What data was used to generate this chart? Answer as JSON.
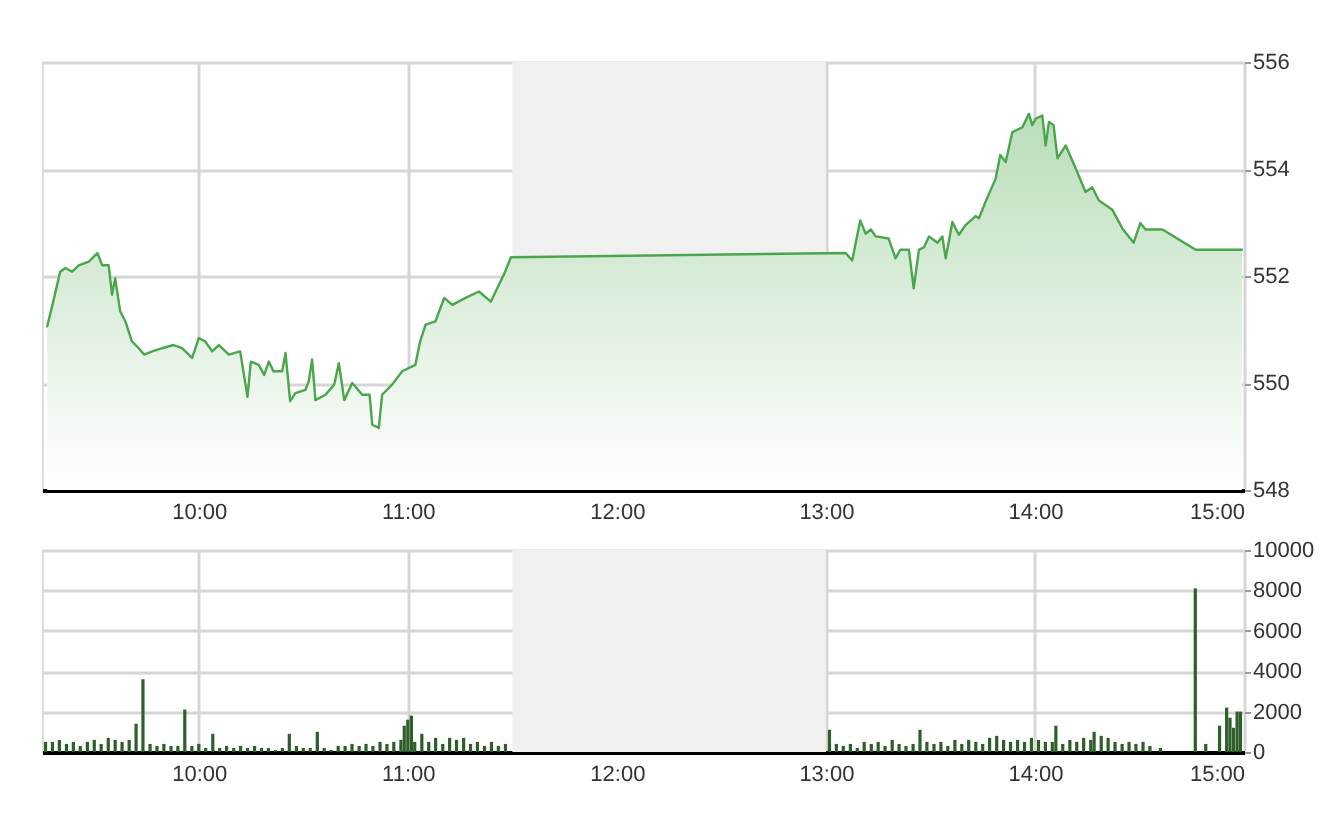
{
  "chart_data": [
    {
      "type": "area",
      "color": "#4aa64a",
      "xlim": [
        9.25,
        15
      ],
      "ylim": [
        548,
        556
      ],
      "xticks": [
        {
          "value": 10,
          "label": "10:00"
        },
        {
          "value": 11,
          "label": "11:00"
        },
        {
          "value": 12,
          "label": "12:00"
        },
        {
          "value": 13,
          "label": "13:00"
        },
        {
          "value": 14,
          "label": "14:00"
        },
        {
          "value": 15,
          "label": "15:00"
        }
      ],
      "yticks": [
        548,
        550,
        552,
        554,
        556
      ],
      "grid": true,
      "bands": [
        {
          "axis": "x",
          "from": 11.5,
          "to": 13,
          "color": "#f0f0f0"
        }
      ],
      "x": [
        9.275,
        9.3,
        9.337,
        9.362,
        9.394,
        9.426,
        9.474,
        9.515,
        9.538,
        9.569,
        9.585,
        9.6,
        9.624,
        9.649,
        9.68,
        9.713,
        9.739,
        9.777,
        9.825,
        9.879,
        9.92,
        9.968,
        10.0,
        10.03,
        10.064,
        10.096,
        10.144,
        10.198,
        10.233,
        10.249,
        10.287,
        10.313,
        10.335,
        10.357,
        10.399,
        10.415,
        10.437,
        10.462,
        10.51,
        10.526,
        10.542,
        10.558,
        10.606,
        10.648,
        10.67,
        10.696,
        10.734,
        10.782,
        10.817,
        10.83,
        10.861,
        10.877,
        10.925,
        10.973,
        11.036,
        11.059,
        11.085,
        11.132,
        11.174,
        11.213,
        11.276,
        11.34,
        11.397,
        11.435,
        11.461,
        11.493,
        13.094,
        13.126,
        13.164,
        13.19,
        13.215,
        13.238,
        13.3,
        13.333,
        13.356,
        13.397,
        13.42,
        13.445,
        13.47,
        13.493,
        13.534,
        13.557,
        13.573,
        13.605,
        13.636,
        13.668,
        13.716,
        13.732,
        13.764,
        13.812,
        13.834,
        13.86,
        13.892,
        13.94,
        13.971,
        13.987,
        14.003,
        14.035,
        14.051,
        14.067,
        14.089,
        14.108,
        14.147,
        14.195,
        14.242,
        14.274,
        14.306,
        14.37,
        14.418,
        14.472,
        14.504,
        14.529,
        14.61,
        14.769,
        14.99
      ],
      "values": [
        551.06,
        551.46,
        552.08,
        552.15,
        552.08,
        552.2,
        552.27,
        552.43,
        552.2,
        552.2,
        551.65,
        551.96,
        551.34,
        551.15,
        550.78,
        550.65,
        550.53,
        550.59,
        550.65,
        550.71,
        550.65,
        550.47,
        550.84,
        550.78,
        550.59,
        550.71,
        550.53,
        550.59,
        549.74,
        550.4,
        550.34,
        550.15,
        550.4,
        550.22,
        550.22,
        550.56,
        549.66,
        549.81,
        549.87,
        550.03,
        550.44,
        549.68,
        549.78,
        549.97,
        550.37,
        549.68,
        550.0,
        549.78,
        549.78,
        549.22,
        549.16,
        549.78,
        549.97,
        550.22,
        550.34,
        550.78,
        551.09,
        551.15,
        551.59,
        551.46,
        551.59,
        551.71,
        551.52,
        551.83,
        552.04,
        552.35,
        552.43,
        552.29,
        553.04,
        552.79,
        552.87,
        552.74,
        552.7,
        552.33,
        552.49,
        552.49,
        551.77,
        552.49,
        552.54,
        552.74,
        552.62,
        552.74,
        552.33,
        553.01,
        552.77,
        552.95,
        553.12,
        553.08,
        553.39,
        553.82,
        554.26,
        554.13,
        554.69,
        554.78,
        555.03,
        554.82,
        554.94,
        555.0,
        554.44,
        554.88,
        554.82,
        554.2,
        554.44,
        554.01,
        553.57,
        553.66,
        553.41,
        553.24,
        552.89,
        552.62,
        552.99,
        552.87,
        552.87,
        552.49,
        552.49
      ]
    },
    {
      "type": "bar",
      "color": "#2e5e2a",
      "xlim": [
        9.25,
        15
      ],
      "ylim": [
        0,
        10000
      ],
      "xticks": [
        {
          "value": 10,
          "label": "10:00"
        },
        {
          "value": 11,
          "label": "11:00"
        },
        {
          "value": 12,
          "label": "12:00"
        },
        {
          "value": 13,
          "label": "13:00"
        },
        {
          "value": 14,
          "label": "14:00"
        },
        {
          "value": 15,
          "label": "15:00"
        }
      ],
      "yticks": [
        0,
        2000,
        4000,
        6000,
        8000,
        10000
      ],
      "grid": true,
      "bands": [
        {
          "axis": "x",
          "from": 11.5,
          "to": 13,
          "color": "#f0f0f0"
        }
      ],
      "x": [
        9.267,
        9.3,
        9.333,
        9.367,
        9.4,
        9.433,
        9.467,
        9.5,
        9.533,
        9.567,
        9.6,
        9.633,
        9.667,
        9.7,
        9.733,
        9.767,
        9.8,
        9.833,
        9.867,
        9.9,
        9.933,
        9.967,
        10.0,
        10.033,
        10.067,
        10.1,
        10.133,
        10.167,
        10.2,
        10.233,
        10.267,
        10.3,
        10.333,
        10.367,
        10.4,
        10.433,
        10.467,
        10.5,
        10.533,
        10.567,
        10.6,
        10.633,
        10.667,
        10.7,
        10.733,
        10.767,
        10.8,
        10.833,
        10.867,
        10.9,
        10.933,
        10.967,
        10.983,
        11.0,
        11.017,
        11.033,
        11.067,
        11.1,
        11.133,
        11.167,
        11.2,
        11.233,
        11.267,
        11.3,
        11.333,
        11.367,
        11.4,
        11.433,
        11.467,
        13.017,
        13.05,
        13.083,
        13.117,
        13.15,
        13.183,
        13.217,
        13.25,
        13.283,
        13.317,
        13.35,
        13.383,
        13.417,
        13.45,
        13.483,
        13.517,
        13.55,
        13.583,
        13.617,
        13.65,
        13.683,
        13.717,
        13.75,
        13.783,
        13.817,
        13.85,
        13.883,
        13.917,
        13.95,
        13.983,
        14.017,
        14.05,
        14.083,
        14.1,
        14.133,
        14.167,
        14.2,
        14.233,
        14.267,
        14.283,
        14.317,
        14.35,
        14.383,
        14.417,
        14.45,
        14.483,
        14.517,
        14.55,
        14.6,
        14.767,
        14.817,
        14.883,
        14.917,
        14.933,
        14.95,
        14.967,
        14.983
      ],
      "values": [
        500,
        500,
        600,
        400,
        500,
        300,
        500,
        600,
        400,
        700,
        600,
        500,
        600,
        1400,
        3600,
        400,
        300,
        400,
        300,
        300,
        2100,
        300,
        400,
        200,
        900,
        200,
        300,
        200,
        300,
        200,
        300,
        200,
        200,
        100,
        200,
        900,
        300,
        200,
        200,
        1000,
        200,
        100,
        300,
        300,
        400,
        300,
        400,
        300,
        500,
        400,
        500,
        600,
        1300,
        1600,
        1800,
        500,
        900,
        500,
        700,
        400,
        700,
        600,
        700,
        400,
        500,
        300,
        500,
        300,
        400,
        1100,
        400,
        300,
        400,
        200,
        500,
        400,
        500,
        300,
        600,
        400,
        300,
        400,
        1100,
        500,
        400,
        500,
        300,
        600,
        400,
        600,
        500,
        400,
        700,
        800,
        600,
        500,
        600,
        500,
        700,
        600,
        500,
        500,
        1300,
        400,
        600,
        500,
        700,
        600,
        1000,
        800,
        700,
        500,
        400,
        500,
        400,
        500,
        300,
        200,
        8100,
        400,
        1300,
        2200,
        1700,
        1200,
        2000,
        2000
      ]
    }
  ]
}
